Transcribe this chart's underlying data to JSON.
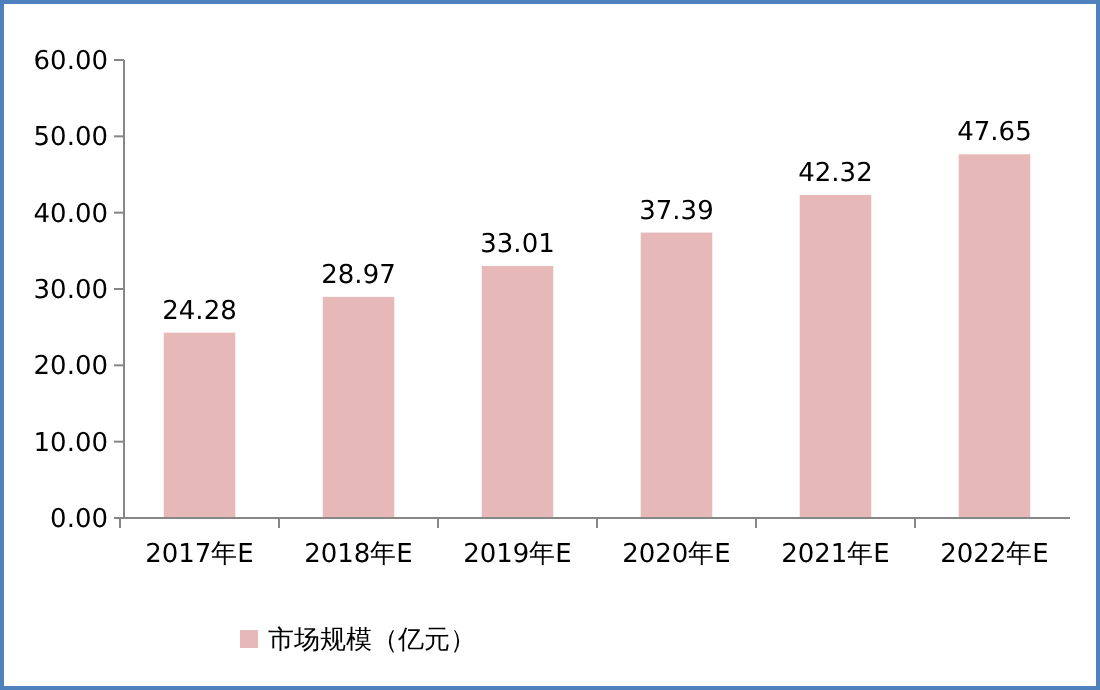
{
  "chart_data": {
    "type": "bar",
    "categories": [
      "2017年E",
      "2018年E",
      "2019年E",
      "2020年E",
      "2021年E",
      "2022年E"
    ],
    "series": [
      {
        "name": "市场规模（亿元）",
        "color": "#e6b9b8",
        "values": [
          24.28,
          28.97,
          33.01,
          37.39,
          42.32,
          47.65
        ]
      }
    ],
    "ylim": [
      0,
      60
    ],
    "yticks": [
      {
        "value": 0,
        "label": "0.00"
      },
      {
        "value": 10,
        "label": "10.00"
      },
      {
        "value": 20,
        "label": "20.00"
      },
      {
        "value": 30,
        "label": "30.00"
      },
      {
        "value": 40,
        "label": "40.00"
      },
      {
        "value": 50,
        "label": "50.00"
      },
      {
        "value": 60,
        "label": "60.00"
      }
    ],
    "data_labels": true,
    "legend": "bottom left",
    "grid": false
  }
}
